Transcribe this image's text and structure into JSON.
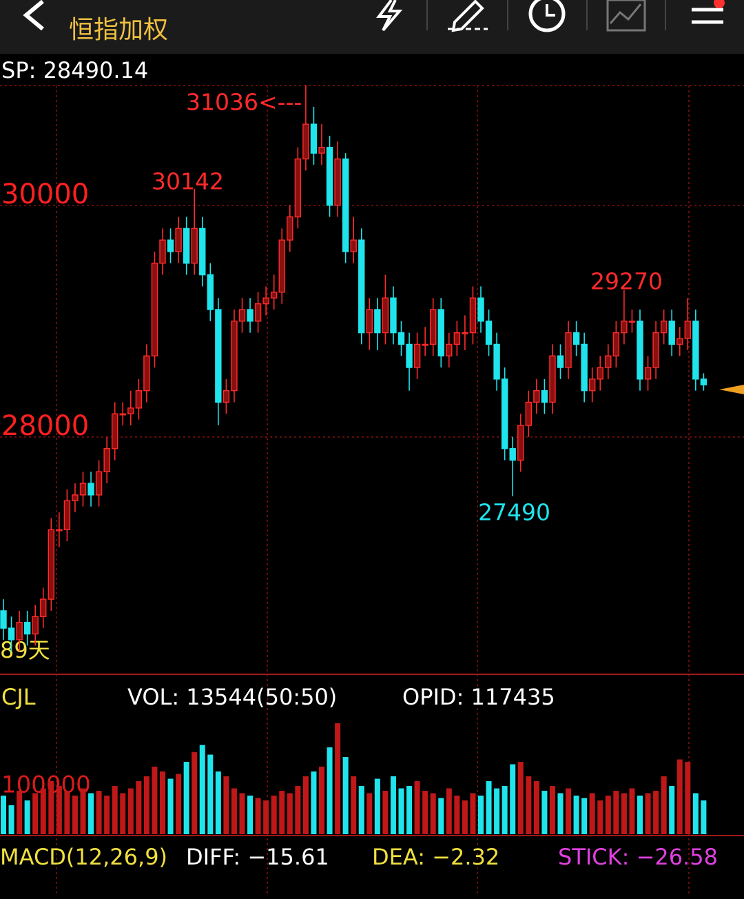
{
  "header": {
    "title": "恒指加权"
  },
  "chart_data": [
    {
      "type": "candlestick",
      "title": "SP: 28490.14",
      "open": [
        26500,
        26350,
        26250,
        26400,
        26300,
        26450,
        26600,
        27200,
        27200,
        27450,
        27500,
        27600,
        27500,
        27700,
        27900,
        28200,
        28200,
        28250,
        28400,
        28700,
        29500,
        29700,
        29600,
        29800,
        29500,
        29800,
        29400,
        29100,
        28300,
        28400,
        29000,
        29100,
        29000,
        29150,
        29200,
        29250,
        29700,
        29900,
        30400,
        30700,
        30450,
        30500,
        30000,
        30400,
        29600,
        29700,
        28900,
        29100,
        28900,
        29200,
        28900,
        28800,
        28600,
        28800,
        28800,
        29100,
        28700,
        28800,
        28900,
        28900,
        29200,
        29000,
        28800,
        28500,
        27900,
        27800,
        28100,
        28300,
        28400,
        28300,
        28700,
        28600,
        28900,
        28800,
        28400,
        28500,
        28600,
        28700,
        28900,
        29000,
        29000,
        28500,
        28600,
        28900,
        29000,
        28800,
        28850,
        29000,
        28500
      ],
      "high": [
        26600,
        26450,
        26500,
        26500,
        26550,
        26700,
        27300,
        27350,
        27550,
        27600,
        27700,
        27700,
        27800,
        28000,
        28300,
        28300,
        28400,
        28500,
        28800,
        29600,
        29800,
        29800,
        29900,
        29900,
        30142,
        29900,
        29500,
        29200,
        28500,
        29100,
        29200,
        29200,
        29250,
        29300,
        29400,
        29800,
        30000,
        30500,
        31036,
        30850,
        30700,
        30600,
        30550,
        30450,
        29900,
        29800,
        29200,
        29200,
        29400,
        29300,
        29000,
        28900,
        28900,
        28950,
        29200,
        29200,
        28900,
        29000,
        29050,
        29300,
        29300,
        29100,
        28900,
        28600,
        28000,
        28200,
        28400,
        28500,
        28500,
        28800,
        28800,
        29000,
        29000,
        28900,
        28600,
        28700,
        28800,
        29000,
        29270,
        29100,
        29100,
        28700,
        29000,
        29100,
        29100,
        28950,
        29200,
        29100,
        28550
      ],
      "low": [
        26250,
        26150,
        26150,
        26200,
        26200,
        26350,
        26500,
        27050,
        27100,
        27350,
        27400,
        27400,
        27400,
        27600,
        27800,
        28100,
        28100,
        28150,
        28300,
        28600,
        29400,
        29500,
        29500,
        29400,
        29400,
        29300,
        29000,
        28100,
        28200,
        28300,
        28900,
        28900,
        28900,
        29050,
        29100,
        29150,
        29600,
        29800,
        30300,
        30350,
        30350,
        29900,
        29900,
        29500,
        29500,
        28800,
        28750,
        28750,
        28800,
        28800,
        28700,
        28400,
        28500,
        28700,
        28700,
        28600,
        28600,
        28700,
        28750,
        28800,
        28900,
        28700,
        28400,
        27800,
        27490,
        27700,
        28000,
        28200,
        28200,
        28200,
        28500,
        28500,
        28700,
        28300,
        28300,
        28400,
        28500,
        28600,
        28800,
        28900,
        28400,
        28400,
        28500,
        28800,
        28700,
        28700,
        28750,
        28400,
        28400
      ],
      "close": [
        26350,
        26250,
        26400,
        26300,
        26450,
        26600,
        27200,
        27200,
        27450,
        27500,
        27600,
        27500,
        27700,
        27900,
        28200,
        28200,
        28250,
        28400,
        28700,
        29500,
        29700,
        29600,
        29800,
        29500,
        29800,
        29400,
        29100,
        28300,
        28400,
        29000,
        29100,
        29000,
        29150,
        29200,
        29250,
        29700,
        29900,
        30400,
        30700,
        30450,
        30500,
        30000,
        30400,
        29600,
        29700,
        28900,
        29100,
        28900,
        29200,
        28900,
        28800,
        28600,
        28800,
        28800,
        29100,
        28700,
        28800,
        28900,
        28900,
        29200,
        29000,
        28800,
        28500,
        27900,
        27800,
        28100,
        28300,
        28400,
        28300,
        28700,
        28600,
        28900,
        28800,
        28400,
        28500,
        28600,
        28700,
        28900,
        29000,
        29000,
        28500,
        28600,
        28900,
        29000,
        28800,
        28850,
        29000,
        28500,
        28450
      ],
      "up_color": "#ff2a2a",
      "down_color": "#20e4ec",
      "ylim": [
        25970,
        31040
      ],
      "yticks": [
        28000,
        30000
      ],
      "grid": true,
      "annotations": [
        "31036<---",
        "30142",
        "29270",
        "27490",
        "89天"
      ]
    },
    {
      "type": "bar",
      "title": "CJL",
      "subtitle": "VOL: 13544(50:50)",
      "note": "OPID: 117435",
      "values": [
        80000,
        60000,
        90000,
        70000,
        85000,
        95000,
        110000,
        100000,
        90000,
        80000,
        95000,
        85000,
        90000,
        80000,
        100000,
        85000,
        95000,
        110000,
        120000,
        140000,
        130000,
        115000,
        125000,
        150000,
        170000,
        185000,
        165000,
        130000,
        120000,
        95000,
        85000,
        80000,
        75000,
        70000,
        80000,
        90000,
        85000,
        100000,
        120000,
        130000,
        140000,
        180000,
        230000,
        160000,
        120000,
        100000,
        85000,
        115000,
        90000,
        120000,
        95000,
        100000,
        110000,
        90000,
        85000,
        75000,
        95000,
        80000,
        70000,
        85000,
        80000,
        110000,
        95000,
        100000,
        145000,
        150000,
        120000,
        110000,
        90000,
        100000,
        85000,
        95000,
        80000,
        75000,
        85000,
        70000,
        80000,
        90000,
        85000,
        95000,
        80000,
        85000,
        90000,
        120000,
        100000,
        155000,
        150000,
        85000,
        70000
      ],
      "ylim": [
        0,
        243000
      ],
      "yticks": [
        100000
      ]
    },
    {
      "type": "indicator",
      "title": "MACD(12,26,9)",
      "labels": [
        "DIFF: −15.61",
        "DEA: −2.32",
        "STICK: −26.58"
      ]
    }
  ]
}
